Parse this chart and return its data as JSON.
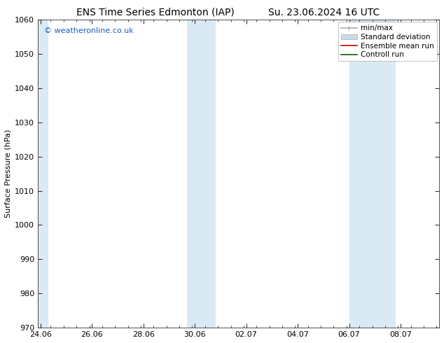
{
  "title": "ENS Time Series Edmonton (IAP)",
  "title2": "Su. 23.06.2024 16 UTC",
  "ylabel": "Surface Pressure (hPa)",
  "ylim": [
    970,
    1060
  ],
  "yticks": [
    970,
    980,
    990,
    1000,
    1010,
    1020,
    1030,
    1040,
    1050,
    1060
  ],
  "x_tick_labels": [
    "24.06",
    "26.06",
    "28.06",
    "30.06",
    "02.07",
    "04.07",
    "06.07",
    "08.07"
  ],
  "x_tick_positions": [
    0,
    2,
    4,
    6,
    8,
    10,
    12,
    14
  ],
  "xlim": [
    -0.1,
    15.5
  ],
  "shaded_bands": [
    {
      "x_start": -0.1,
      "x_end": 0.3
    },
    {
      "x_start": 5.7,
      "x_end": 6.8
    },
    {
      "x_start": 12.0,
      "x_end": 13.8
    }
  ],
  "shaded_color": "#daeaf5",
  "background_color": "#ffffff",
  "watermark_text": "© weatheronline.co.uk",
  "watermark_color": "#1a5eb8",
  "legend_entries": [
    {
      "label": "min/max",
      "color": "#aaaaaa",
      "lw": 1.2,
      "style": "line_with_caps"
    },
    {
      "label": "Standard deviation",
      "color": "#c8dcea",
      "lw": 6,
      "style": "band"
    },
    {
      "label": "Ensemble mean run",
      "color": "#cc0000",
      "lw": 1.2,
      "style": "line"
    },
    {
      "label": "Controll run",
      "color": "#006600",
      "lw": 1.2,
      "style": "line"
    }
  ],
  "font_size_title": 10,
  "font_size_axis": 8,
  "font_size_ticks": 8,
  "font_size_legend": 7.5,
  "font_size_watermark": 8
}
